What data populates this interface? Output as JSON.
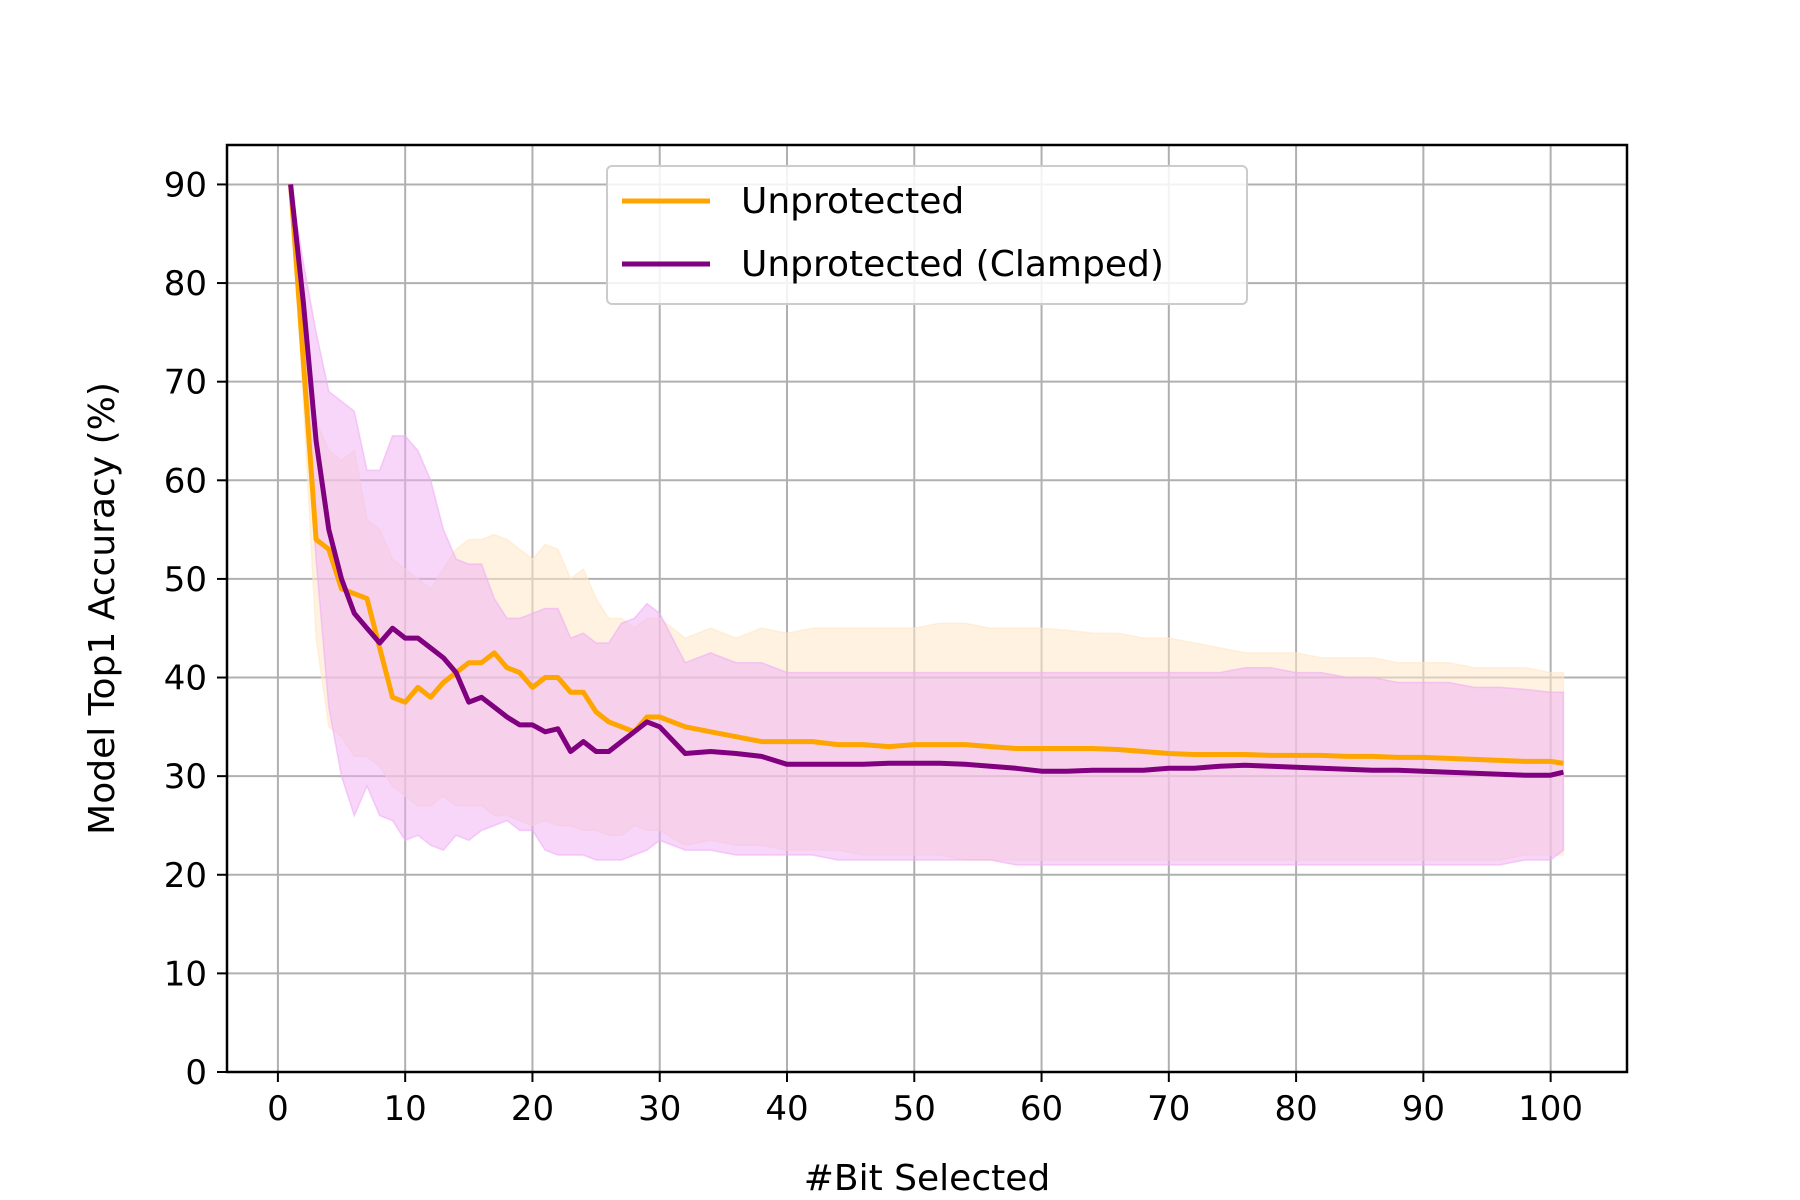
{
  "chart_data": {
    "type": "line",
    "title": "",
    "xlabel": "#Bit Selected",
    "ylabel": "Model Top1 Accuracy (%)",
    "xlim": [
      -4,
      106
    ],
    "ylim": [
      0,
      94
    ],
    "xticks": [
      0,
      10,
      20,
      30,
      40,
      50,
      60,
      70,
      80,
      90,
      100
    ],
    "yticks": [
      0,
      10,
      20,
      30,
      40,
      50,
      60,
      70,
      80,
      90
    ],
    "grid": true,
    "legend_position": "top-center",
    "x": [
      1,
      2,
      3,
      4,
      5,
      6,
      7,
      8,
      9,
      10,
      11,
      12,
      13,
      14,
      15,
      16,
      17,
      18,
      19,
      20,
      21,
      22,
      23,
      24,
      25,
      26,
      27,
      28,
      29,
      30,
      32,
      34,
      36,
      38,
      40,
      42,
      44,
      46,
      48,
      50,
      52,
      54,
      56,
      58,
      60,
      62,
      64,
      66,
      68,
      70,
      72,
      74,
      76,
      78,
      80,
      82,
      84,
      86,
      88,
      90,
      92,
      94,
      96,
      98,
      100,
      101
    ],
    "series": [
      {
        "name": "Unprotected",
        "color": "#ffa500",
        "band_color": "#ffe8c8",
        "values": [
          90,
          72,
          54,
          53,
          49,
          48.5,
          48,
          43,
          38,
          37.5,
          39,
          38,
          39.5,
          40.5,
          41.5,
          41.5,
          42.5,
          41,
          40.5,
          39,
          40,
          40,
          38.5,
          38.5,
          36.5,
          35.5,
          35,
          34.5,
          36,
          36,
          35,
          34.5,
          34,
          33.5,
          33.5,
          33.5,
          33.2,
          33.2,
          33,
          33.2,
          33.2,
          33.2,
          33,
          32.8,
          32.8,
          32.8,
          32.8,
          32.7,
          32.5,
          32.3,
          32.2,
          32.2,
          32.2,
          32.1,
          32.1,
          32.1,
          32,
          32,
          31.9,
          31.9,
          31.8,
          31.7,
          31.6,
          31.5,
          31.5,
          31.3
        ],
        "upper": [
          90,
          75,
          66,
          63,
          62,
          63,
          56,
          55,
          52,
          51,
          50,
          49,
          51,
          53,
          54,
          54,
          54.5,
          54,
          53,
          52,
          53.5,
          53,
          50,
          51,
          48,
          46,
          46,
          45,
          46,
          46,
          44,
          45,
          44,
          45,
          44.5,
          45,
          45,
          45,
          45,
          45,
          45.5,
          45.5,
          45,
          45,
          45,
          44.8,
          44.5,
          44.5,
          44,
          44,
          43.5,
          43,
          42.5,
          42.5,
          42.5,
          42,
          42,
          42,
          41.5,
          41.5,
          41.5,
          41,
          41,
          41,
          40.5,
          40.5
        ],
        "lower": [
          90,
          68,
          44,
          35,
          34,
          32,
          32,
          31,
          29,
          28,
          27,
          27,
          28,
          27,
          27,
          27,
          26,
          26,
          25.5,
          25,
          25.5,
          25,
          25,
          24.5,
          24.5,
          24,
          24,
          25,
          24.5,
          24.5,
          23,
          23.5,
          23,
          23,
          22.5,
          22.5,
          22.5,
          22,
          22,
          22,
          22,
          21.5,
          21.5,
          21.5,
          21.5,
          21.5,
          21.5,
          21.5,
          21.5,
          21.5,
          21.5,
          21.5,
          21.5,
          21.5,
          21.5,
          21.5,
          21.5,
          21.5,
          21.5,
          21.5,
          21.5,
          21.5,
          21.5,
          22,
          22,
          22
        ]
      },
      {
        "name": "Unprotected (Clamped)",
        "color": "#800080",
        "band_color": "#f0aef5",
        "values": [
          90,
          78,
          64,
          55,
          50,
          46.5,
          45,
          43.5,
          45,
          44,
          44,
          43,
          42,
          40.5,
          37.5,
          38,
          37,
          36,
          35.2,
          35.2,
          34.5,
          34.8,
          32.5,
          33.5,
          32.5,
          32.5,
          33.5,
          34.5,
          35.5,
          35,
          32.3,
          32.5,
          32.3,
          32,
          31.2,
          31.2,
          31.2,
          31.2,
          31.3,
          31.3,
          31.3,
          31.2,
          31,
          30.8,
          30.5,
          30.5,
          30.6,
          30.6,
          30.6,
          30.8,
          30.8,
          31,
          31.1,
          31,
          30.9,
          30.8,
          30.7,
          30.6,
          30.6,
          30.5,
          30.4,
          30.3,
          30.2,
          30.1,
          30.1,
          30.4
        ],
        "upper": [
          90,
          82,
          75,
          69,
          68,
          67,
          61,
          61,
          64.5,
          64.5,
          63,
          60,
          55,
          52,
          51.5,
          51.5,
          48,
          46,
          46,
          46.5,
          47,
          47,
          44,
          44.5,
          43.5,
          43.5,
          45.5,
          46,
          47.5,
          46.5,
          41.5,
          42.5,
          41.5,
          41.5,
          40.5,
          40.5,
          40.5,
          40.5,
          40.5,
          40.5,
          40.5,
          40.5,
          40.5,
          40.5,
          40.5,
          40.5,
          40.5,
          40.5,
          40.5,
          40.5,
          40.5,
          40.5,
          41,
          41,
          40.5,
          40.5,
          40,
          40,
          39.5,
          39.5,
          39.5,
          39,
          39,
          38.8,
          38.5,
          38.5
        ],
        "lower": [
          90,
          70,
          52,
          37,
          30,
          26,
          29,
          26,
          25.5,
          23.5,
          24,
          23,
          22.5,
          24,
          23.5,
          24.5,
          25,
          25.5,
          24.5,
          24.5,
          22.5,
          22,
          22,
          22,
          21.5,
          21.5,
          21.5,
          22,
          22.5,
          23.5,
          22.5,
          22.5,
          22,
          22,
          22,
          22,
          21.5,
          21.5,
          21.5,
          21.5,
          21.5,
          21.5,
          21.5,
          21,
          21,
          21,
          21,
          21,
          21,
          21,
          21,
          21,
          21,
          21,
          21,
          21,
          21,
          21,
          21,
          21,
          21,
          21,
          21,
          21.5,
          21.5,
          22.5
        ]
      }
    ]
  }
}
